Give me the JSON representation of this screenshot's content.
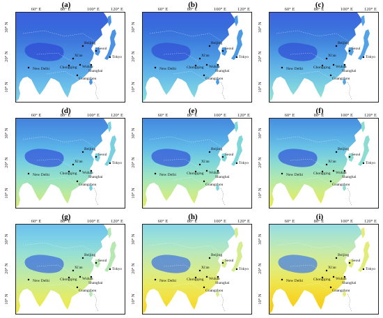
{
  "panels": [
    {
      "label": "(a)",
      "bands": [
        "#3c61df",
        "#3868dc",
        "#3f79dd",
        "#4a92e3",
        "#5aa9e8",
        "#6cc1ea",
        "#7ed4e8"
      ],
      "plateau": "#2f4bd4"
    },
    {
      "label": "(b)",
      "bands": [
        "#3c62df",
        "#386ddc",
        "#3e80de",
        "#4d9ae4",
        "#60b3e8",
        "#75cbe6",
        "#8adfdf"
      ],
      "plateau": "#3150d5"
    },
    {
      "label": "(c)",
      "bands": [
        "#3d63df",
        "#3b71dd",
        "#4286de",
        "#52a2e5",
        "#68bce6",
        "#80d4e0",
        "#96e4d4"
      ],
      "plateau": "#3252d6"
    },
    {
      "label": "(d)",
      "bands": [
        "#4482de",
        "#4c99e3",
        "#5cb5e8",
        "#78d0e0",
        "#96e1c8",
        "#b8eaa0",
        "#d6ec70"
      ],
      "plateau": "#3556d8"
    },
    {
      "label": "(e)",
      "bands": [
        "#4488df",
        "#4fa0e4",
        "#62bce7",
        "#80d7da",
        "#a2e6bf",
        "#c6ec92",
        "#e2ec60"
      ],
      "plateau": "#3557d8"
    },
    {
      "label": "(f)",
      "bands": [
        "#468ee0",
        "#55a8e5",
        "#6ac4e5",
        "#8cdcd2",
        "#b0e8b0",
        "#d2ec80",
        "#ecea4c"
      ],
      "plateau": "#3659d8"
    },
    {
      "label": "(g)",
      "bands": [
        "#6cc0ec",
        "#7ed2e6",
        "#98e0d2",
        "#b6e8b2",
        "#cfec8e",
        "#e4ec62",
        "#f2e63a"
      ],
      "plateau": "#3f6fdc"
    },
    {
      "label": "(h)",
      "bands": [
        "#86d4e8",
        "#a0e2d4",
        "#bde9b6",
        "#d6ec90",
        "#e8ea62",
        "#f4e03e",
        "#f6d31e"
      ],
      "plateau": "#4578de"
    },
    {
      "label": "(i)",
      "bands": [
        "#94dce4",
        "#b0e6c6",
        "#cceba2",
        "#e2ec78",
        "#f0e44a",
        "#f6d526",
        "#f7c812"
      ],
      "plateau": "#4a80e0"
    }
  ],
  "lon_ticks": [
    "60° E",
    "80° E",
    "100° E",
    "120° E"
  ],
  "lat_ticks": [
    "30° N",
    "20° N",
    "10° N"
  ],
  "cities": [
    "Beijing",
    "Seoul",
    "Tokyo",
    "Xi'an",
    "New Delhi",
    "Chongqing",
    "Wuhan",
    "Shanghai",
    "Guangzhou"
  ]
}
